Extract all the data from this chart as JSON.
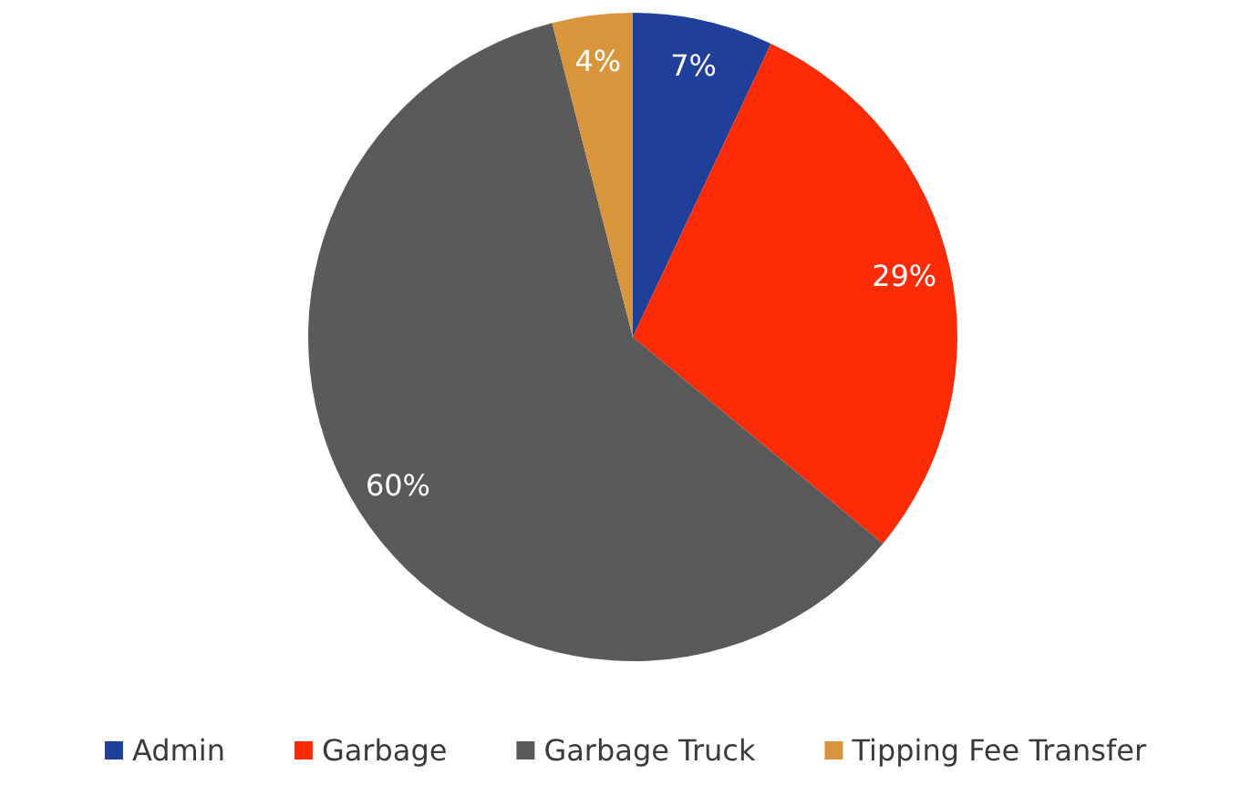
{
  "chart_data": {
    "type": "pie",
    "categories": [
      "Admin",
      "Garbage",
      "Garbage Truck",
      "Tipping Fee Transfer"
    ],
    "values": [
      7,
      29,
      60,
      4
    ],
    "value_labels": [
      "7%",
      "29%",
      "60%",
      "4%"
    ],
    "colors": [
      "#1f3f9a",
      "#fb2c05",
      "#5b5a5a",
      "#d8953c"
    ],
    "legend": "bottom"
  }
}
